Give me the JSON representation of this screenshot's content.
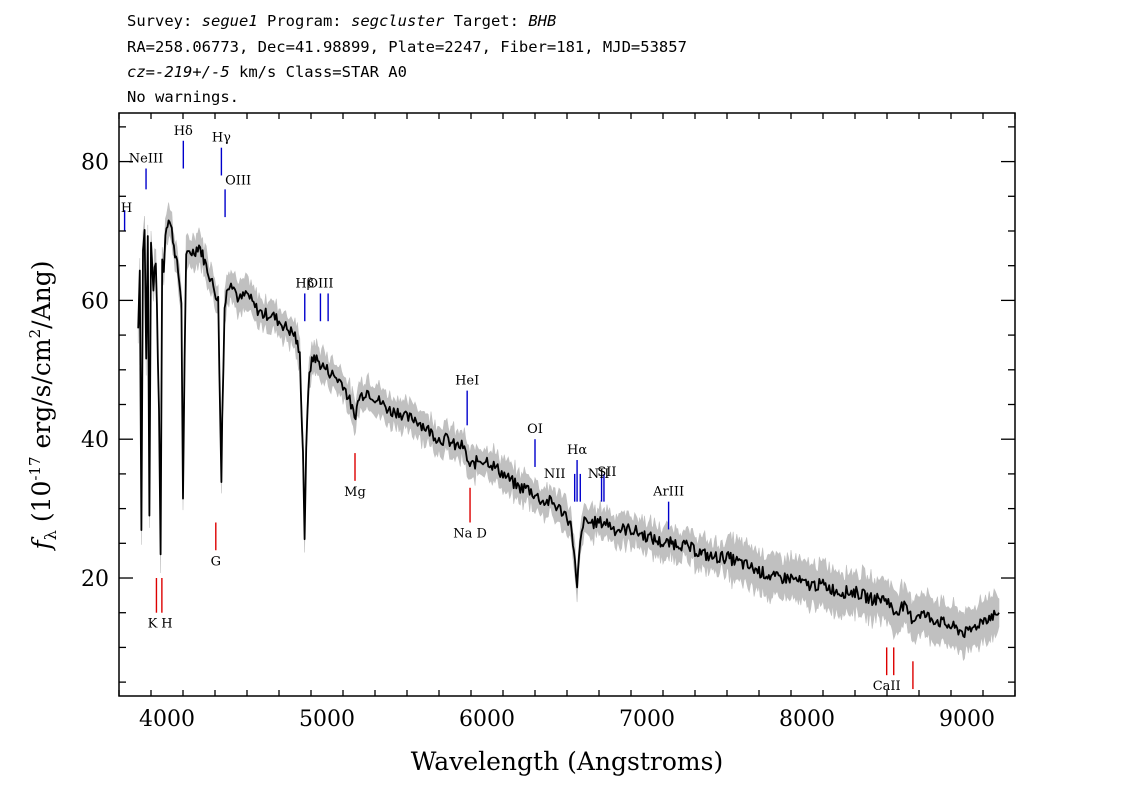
{
  "header": {
    "survey_label": "Survey: ",
    "survey": "segue1",
    "program_label": " Program: ",
    "program": "segcluster",
    "target_label": " Target: ",
    "target": "BHB",
    "line2": "RA=258.06773, Dec=41.98899, Plate=2247, Fiber=181, MJD=53857",
    "cz_prefix": "cz=",
    "cz_value": "-219+/-5",
    "cz_suffix": " km/s Class=STAR A0",
    "line4": "No warnings."
  },
  "chart_data": {
    "type": "line",
    "xlabel": "Wavelength (Angstroms)",
    "ylabel_prefix": "f",
    "ylabel_sub": "λ",
    "ylabel_mid": " (10",
    "ylabel_exp1": "-17",
    "ylabel_mid2": " erg/s/cm",
    "ylabel_exp2": "2",
    "ylabel_end": "/Ang)",
    "xlim": [
      3700,
      9300
    ],
    "ylim": [
      3,
      87
    ],
    "x_ticks": [
      4000,
      5000,
      6000,
      7000,
      8000,
      9000
    ],
    "x_tick_labels": [
      "4000",
      "5000",
      "6000",
      "7000",
      "8000",
      "9000"
    ],
    "y_ticks": [
      20,
      40,
      60,
      80
    ],
    "y_tick_labels": [
      "20",
      "40",
      "60",
      "80"
    ],
    "colors": {
      "spectrum": "#000000",
      "error_band": "#c0c0c0",
      "emission": "#0000cc",
      "absorption": "#dd0000"
    },
    "series": [
      {
        "kind": "flux",
        "x": [
          3820,
          3830,
          3840,
          3850,
          3860,
          3870,
          3880,
          3890,
          3900,
          3915,
          3930,
          3950,
          3960,
          3970,
          3980,
          3990,
          4010,
          4030,
          4050,
          4070,
          4090,
          4100,
          4110,
          4120,
          4140,
          4170,
          4200,
          4230,
          4260,
          4290,
          4320,
          4335,
          4340,
          4345,
          4360,
          4380,
          4400,
          4450,
          4500,
          4550,
          4600,
          4650,
          4700,
          4750,
          4800,
          4830,
          4850,
          4860,
          4870,
          4890,
          4920,
          4950,
          5000,
          5050,
          5100,
          5150,
          5172,
          5200,
          5250,
          5300,
          5350,
          5400,
          5450,
          5500,
          5550,
          5600,
          5650,
          5700,
          5750,
          5800,
          5850,
          5893,
          5950,
          6000,
          6050,
          6100,
          6150,
          6200,
          6250,
          6300,
          6350,
          6400,
          6450,
          6500,
          6530,
          6550,
          6563,
          6575,
          6600,
          6650,
          6700,
          6750,
          6800,
          6850,
          6900,
          7000,
          7100,
          7200,
          7300,
          7400,
          7500,
          7600,
          7700,
          7800,
          7900,
          8000,
          8100,
          8200,
          8300,
          8400,
          8500,
          8542,
          8600,
          8662,
          8700,
          8800,
          8900,
          9000,
          9050,
          9100,
          9200
        ],
        "y": [
          56,
          65,
          27,
          68,
          70,
          52,
          69,
          29,
          68,
          62,
          66,
          44,
          24,
          66,
          64,
          70,
          72,
          70,
          67,
          64,
          60,
          31,
          52,
          66,
          67,
          67,
          68,
          66,
          64,
          62,
          60,
          40,
          34,
          43,
          59,
          62,
          63,
          60,
          61,
          59,
          58,
          58,
          57,
          56,
          55,
          52,
          38,
          26,
          39,
          50,
          52,
          51,
          50,
          49,
          48,
          45,
          43,
          46,
          47,
          46,
          45,
          44,
          44,
          43,
          43,
          42,
          41,
          40,
          40,
          39,
          39,
          36,
          37,
          37,
          36,
          35,
          34,
          33,
          33,
          32,
          31,
          31,
          30,
          29,
          27,
          22,
          18,
          23,
          28,
          28,
          28,
          28,
          27,
          27,
          27,
          26,
          25,
          25,
          24,
          23,
          23,
          22,
          21,
          20,
          20,
          19,
          19,
          18,
          18,
          17,
          17,
          15,
          16,
          14,
          15,
          14,
          13,
          12,
          13,
          14,
          15
        ]
      }
    ],
    "lines": [
      {
        "label": "H",
        "wave": 3735,
        "kind": "emission",
        "y_top": 73,
        "y_bot": 70
      },
      {
        "label": "NeIII",
        "wave": 3869,
        "kind": "emission",
        "y_top": 79,
        "y_bot": 76
      },
      {
        "label": "Hδ",
        "wave": 4102,
        "kind": "emission",
        "y_top": 83,
        "y_bot": 79
      },
      {
        "label": "Hγ",
        "wave": 4340,
        "kind": "emission",
        "y_top": 82,
        "y_bot": 78
      },
      {
        "label": "OIII",
        "wave": 4363,
        "kind": "emission",
        "y_top": 76,
        "y_bot": 72
      },
      {
        "label": "Hβ",
        "wave": 4861,
        "kind": "emission",
        "y_top": 61,
        "y_bot": 57
      },
      {
        "label": "OIII",
        "wave": 4959,
        "kind": "emission",
        "y_top": 61,
        "y_bot": 57
      },
      {
        "label": "",
        "wave": 5007,
        "kind": "emission",
        "y_top": 61,
        "y_bot": 57
      },
      {
        "label": "HeI",
        "wave": 5876,
        "kind": "emission",
        "y_top": 47,
        "y_bot": 42
      },
      {
        "label": "OI",
        "wave": 6300,
        "kind": "emission",
        "y_top": 40,
        "y_bot": 36
      },
      {
        "label": "NII",
        "wave": 6548,
        "kind": "emission",
        "y_top": 35,
        "y_bot": 31
      },
      {
        "label": "Hα",
        "wave": 6563,
        "kind": "emission",
        "y_top": 37,
        "y_bot": 31
      },
      {
        "label": "",
        "wave": 6583,
        "kind": "emission",
        "y_top": 35,
        "y_bot": 31
      },
      {
        "label": "NII",
        "wave": 6716,
        "kind": "emission",
        "y_top": 35,
        "y_bot": 31
      },
      {
        "label": "SII",
        "wave": 6731,
        "kind": "emission",
        "y_top": 35,
        "y_bot": 31
      },
      {
        "label": "ArIII",
        "wave": 7135,
        "kind": "emission",
        "y_top": 31,
        "y_bot": 27
      },
      {
        "label": "K",
        "wave": 3934,
        "kind": "absorption",
        "y_top": 20,
        "y_bot": 15
      },
      {
        "label": "H",
        "wave": 3968,
        "kind": "absorption",
        "y_top": 20,
        "y_bot": 15
      },
      {
        "label": "G",
        "wave": 4305,
        "kind": "absorption",
        "y_top": 28,
        "y_bot": 24
      },
      {
        "label": "Mg",
        "wave": 5175,
        "kind": "absorption",
        "y_top": 38,
        "y_bot": 34
      },
      {
        "label": "Na D",
        "wave": 5894,
        "kind": "absorption",
        "y_top": 33,
        "y_bot": 28
      },
      {
        "label": "CaII",
        "wave": 8498,
        "kind": "absorption",
        "y_top": 10,
        "y_bot": 6
      },
      {
        "label": "",
        "wave": 8542,
        "kind": "absorption",
        "y_top": 10,
        "y_bot": 6
      },
      {
        "label": "",
        "wave": 8662,
        "kind": "absorption",
        "y_top": 8,
        "y_bot": 4
      }
    ]
  }
}
